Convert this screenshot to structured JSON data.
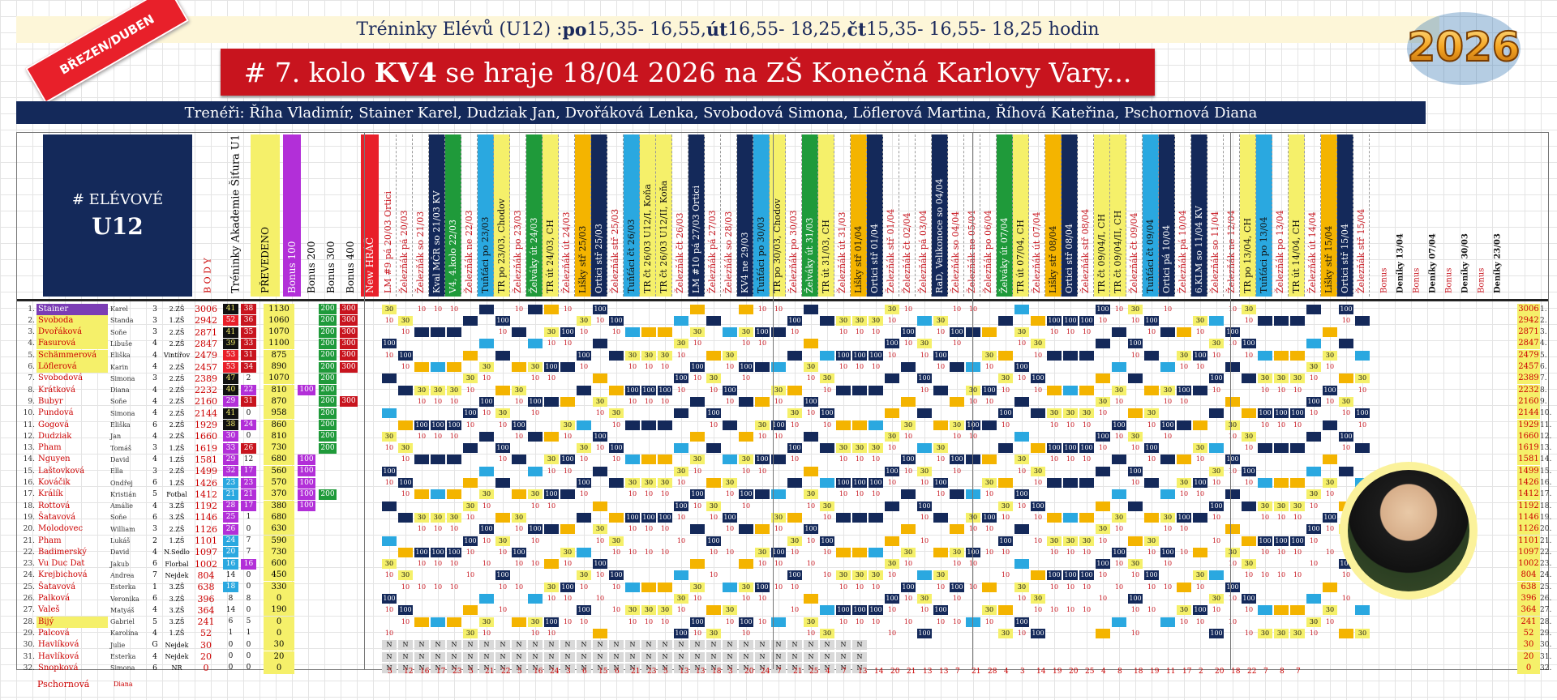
{
  "header": {
    "schedule_html_parts": [
      "Tréninky Elévů (U12) : ",
      "po",
      " 15,35- 16,55, ",
      "út",
      " 16,55- 18,25, ",
      "čt",
      " 15,35- 16,55- 18,25 hodin"
    ],
    "badge": "BŘEZEN/DUBEN",
    "round_prefix": "# 7. kolo ",
    "round_bold": "KV4",
    "round_suffix": " se hraje 18/04 2026 na ZŠ Konečná Karlovy Vary...",
    "coaches": "Trenéři: Říha Vladimír, Stainer Karel, Dudziak Jan, Dvořáková Lenka, Svobodová Simona, Löflerová Martina, Říhová Kateřina, Pschornová Diana",
    "logo_year": "2026"
  },
  "table": {
    "title_line1": "# ELÉVOVÉ",
    "title_line2": "U12",
    "col_body": "B O D Y",
    "col_academy": "Tréninky Akademie Šiťura U12",
    "col_transfer": "PŘEVEDENO",
    "col_bonus100": "Bonus 100",
    "col_bonus200": "Bonus 200",
    "col_bonus300": "Bonus 300",
    "col_bonus400": "Bonus 400",
    "col_new": "New HRÁČ",
    "events": [
      "LM #9 pá 20/03 Ortici",
      "Železňák pá 20/03",
      "Železňák so 21/03",
      "Kval MČR so 21/03 KV",
      "V4, 4.kolo 22/03",
      "Železňák ne 22/03",
      "Tuňťáci po 23/03",
      "TR po 23/03, Chodov",
      "Železňák po 23/03",
      "Želváky út 24/03",
      "TR út 24/03, CH",
      "Železňák út 24/03",
      "Lišky stř 25/03",
      "Ortici stř 25/03",
      "Železňák stř 25/03",
      "Tuňťáci čt 26/03",
      "TR čt 26/03 U12/I, Koňa",
      "TR čt 26/03 U12/II, Koňa",
      "Železňák čt 26/03",
      "LM #10 pá 27/03 Ortici",
      "Železňák pá 27/03",
      "Železňák so 28/03",
      "KV4 ne 29/03",
      "Tuňťáci po 30/03",
      "TR po 30/03, Chodov",
      "Železňák po 30/03",
      "Želváky út 31/03",
      "TR út 31/03, CH",
      "Železňák út 31/03",
      "Lišky stř 01/04",
      "Ortici stř 01/04",
      "Železňák stř 01/04",
      "Železňák čt 02/04",
      "Železňák pá 03/04",
      "RaD, Velikonoce so 04/04",
      "Železňák so 04/04",
      "Železňák ne 05/04",
      "Železňák po 06/04",
      "Želváky út 07/04",
      "TR út 07/04, CH",
      "Železňák út 07/04",
      "Lišky stř 08/04",
      "Ortici stř 08/04",
      "Železňák stř 08/04",
      "TR čt 09/04/I, CH",
      "TR čt 09/04/II, CH",
      "Železňák čt 09/04",
      "Tuňťáci čt 09/04",
      "Ortici pá 10/04",
      "Železňák pá 10/04",
      "6.KLM so 11/04 KV",
      "Železňák so 11/04",
      "Železňák ne 12/04",
      "TR po 13/04, CH",
      "Tuňťáci po 13/04",
      "Železňák po 13/04",
      "TR út 14/04, CH",
      "Železňák út 14/04",
      "Lišky stř 15/04",
      "Ortici stř 15/04",
      "Železňák stř 15/04"
    ],
    "right_headers": [
      "Bonus",
      "Deníky 13/04",
      "Bonus",
      "Deníky 07/04",
      "Bonus",
      "Deníky 30/03",
      "Bonus",
      "Deníky 23/03"
    ],
    "players": [
      {
        "n": "1.",
        "name": "Stainer",
        "first": "Karel",
        "age": "3",
        "school": "2.ZŠ",
        "pts": "3006",
        "a": "41",
        "b": "38",
        "tr": "1130",
        "b100": "",
        "b200": "200",
        "b300": "300",
        "hl": "purple"
      },
      {
        "n": "2.",
        "name": "Svoboda",
        "first": "Standa",
        "age": "3",
        "school": "1.ZŠ",
        "pts": "2942",
        "a": "52",
        "b": "36",
        "tr": "1060",
        "b100": "",
        "b200": "200",
        "b300": "300",
        "hl": "yellow"
      },
      {
        "n": "3.",
        "name": "Dvořáková",
        "first": "Soňe",
        "age": "3",
        "school": "2.ZŠ",
        "pts": "2871",
        "a": "41",
        "b": "35",
        "tr": "1070",
        "b100": "",
        "b200": "200",
        "b300": "300",
        "hl": "yellow"
      },
      {
        "n": "4.",
        "name": "Fasurová",
        "first": "Libuše",
        "age": "4",
        "school": "2.ZŠ",
        "pts": "2847",
        "a": "39",
        "b": "33",
        "tr": "1100",
        "b100": "",
        "b200": "200",
        "b300": "300",
        "hl": "yellow"
      },
      {
        "n": "5.",
        "name": "Schämmerová",
        "first": "Eliška",
        "age": "4",
        "school": "Vintířov",
        "pts": "2479",
        "a": "53",
        "b": "31",
        "tr": "875",
        "b100": "",
        "b200": "200",
        "b300": "300",
        "hl": "yellow"
      },
      {
        "n": "6.",
        "name": "Löflerová",
        "first": "Karin",
        "age": "4",
        "school": "2.ZŠ",
        "pts": "2457",
        "a": "53",
        "b": "34",
        "tr": "890",
        "b100": "",
        "b200": "200",
        "b300": "300",
        "hl": "yellow"
      },
      {
        "n": "7.",
        "name": "Svobodová",
        "first": "Simona",
        "age": "3",
        "school": "2.ZŠ",
        "pts": "2389",
        "a": "47",
        "b": "2",
        "tr": "1070",
        "b100": "",
        "b200": "200",
        "b300": "",
        "hl": ""
      },
      {
        "n": "8.",
        "name": "Krátková",
        "first": "Diana",
        "age": "4",
        "school": "2.ZŠ",
        "pts": "2232",
        "a": "40",
        "b": "22",
        "tr": "810",
        "b100": "100",
        "b200": "200",
        "b300": "",
        "hl": ""
      },
      {
        "n": "9.",
        "name": "Bubyr",
        "first": "Soňe",
        "age": "4",
        "school": "2.ZŠ",
        "pts": "2160",
        "a": "29",
        "b": "31",
        "tr": "870",
        "b100": "",
        "b200": "200",
        "b300": "300",
        "hl": ""
      },
      {
        "n": "10.",
        "name": "Pundová",
        "first": "Simona",
        "age": "4",
        "school": "2.ZŠ",
        "pts": "2144",
        "a": "41",
        "b": "0",
        "tr": "958",
        "b100": "",
        "b200": "200",
        "b300": "",
        "hl": ""
      },
      {
        "n": "11.",
        "name": "Gogová",
        "first": "Eliška",
        "age": "6",
        "school": "2.ZŠ",
        "pts": "1929",
        "a": "38",
        "b": "24",
        "tr": "860",
        "b100": "",
        "b200": "200",
        "b300": "",
        "hl": ""
      },
      {
        "n": "12.",
        "name": "Dudziak",
        "first": "Jan",
        "age": "4",
        "school": "2.ZŠ",
        "pts": "1660",
        "a": "30",
        "b": "0",
        "tr": "810",
        "b100": "",
        "b200": "200",
        "b300": "",
        "hl": ""
      },
      {
        "n": "13.",
        "name": "Pham",
        "first": "Tomáš",
        "age": "3",
        "school": "1.ZŠ",
        "pts": "1619",
        "a": "33",
        "b": "26",
        "tr": "730",
        "b100": "",
        "b200": "200",
        "b300": "",
        "hl": ""
      },
      {
        "n": "14.",
        "name": "Nguyen",
        "first": "David",
        "age": "4",
        "school": "1.ZŠ",
        "pts": "1581",
        "a": "29",
        "b": "12",
        "tr": "680",
        "b100": "100",
        "b200": "",
        "b300": "",
        "hl": ""
      },
      {
        "n": "15.",
        "name": "Laštovková",
        "first": "Ella",
        "age": "3",
        "school": "2.ZŠ",
        "pts": "1499",
        "a": "32",
        "b": "17",
        "tr": "560",
        "b100": "100",
        "b200": "",
        "b300": "",
        "hl": ""
      },
      {
        "n": "16.",
        "name": "Kováčik",
        "first": "Ondřej",
        "age": "6",
        "school": "1.ZŠ",
        "pts": "1426",
        "a": "23",
        "b": "23",
        "tr": "570",
        "b100": "100",
        "b200": "",
        "b300": "",
        "hl": ""
      },
      {
        "n": "17.",
        "name": "Králík",
        "first": "Kristián",
        "age": "5",
        "school": "Fotbal",
        "pts": "1412",
        "a": "21",
        "b": "21",
        "tr": "370",
        "b100": "100",
        "b200": "200",
        "b300": "",
        "hl": ""
      },
      {
        "n": "18.",
        "name": "Rottová",
        "first": "Amálie",
        "age": "4",
        "school": "3.ZŠ",
        "pts": "1192",
        "a": "28",
        "b": "17",
        "tr": "380",
        "b100": "100",
        "b200": "",
        "b300": "",
        "hl": ""
      },
      {
        "n": "19.",
        "name": "Šatavová",
        "first": "Soňe",
        "age": "6",
        "school": "3.ZŠ",
        "pts": "1146",
        "a": "25",
        "b": "1",
        "tr": "680",
        "b100": "",
        "b200": "",
        "b300": "",
        "hl": ""
      },
      {
        "n": "20.",
        "name": "Molodovec",
        "first": "William",
        "age": "3",
        "school": "2.ZŠ",
        "pts": "1126",
        "a": "26",
        "b": "0",
        "tr": "630",
        "b100": "",
        "b200": "",
        "b300": "",
        "hl": ""
      },
      {
        "n": "21.",
        "name": "Pham",
        "first": "Lukáš",
        "age": "2",
        "school": "1.ZŠ",
        "pts": "1101",
        "a": "24",
        "b": "7",
        "tr": "590",
        "b100": "",
        "b200": "",
        "b300": "",
        "hl": ""
      },
      {
        "n": "22.",
        "name": "Badimerský",
        "first": "David",
        "age": "4",
        "school": "N.Sedlo",
        "pts": "1097",
        "a": "20",
        "b": "7",
        "tr": "730",
        "b100": "",
        "b200": "",
        "b300": "",
        "hl": ""
      },
      {
        "n": "23.",
        "name": "Vu Duc Dat",
        "first": "Jakub",
        "age": "6",
        "school": "Florbal",
        "pts": "1002",
        "a": "16",
        "b": "16",
        "tr": "600",
        "b100": "",
        "b200": "",
        "b300": "",
        "hl": ""
      },
      {
        "n": "24.",
        "name": "Krejbichová",
        "first": "Andrea",
        "age": "7",
        "school": "Nejdek",
        "pts": "804",
        "a": "14",
        "b": "0",
        "tr": "450",
        "b100": "",
        "b200": "",
        "b300": "",
        "hl": ""
      },
      {
        "n": "25.",
        "name": "Šatavová",
        "first": "Esterka",
        "age": "1",
        "school": "3.ZŠ",
        "pts": "638",
        "a": "18",
        "b": "0",
        "tr": "330",
        "b100": "",
        "b200": "",
        "b300": "",
        "hl": ""
      },
      {
        "n": "26.",
        "name": "Palková",
        "first": "Veronika",
        "age": "6",
        "school": "3.ZŠ",
        "pts": "396",
        "a": "8",
        "b": "8",
        "tr": "0",
        "b100": "",
        "b200": "",
        "b300": "",
        "hl": ""
      },
      {
        "n": "27.",
        "name": "Valeš",
        "first": "Matyáš",
        "age": "4",
        "school": "3.ZŠ",
        "pts": "364",
        "a": "14",
        "b": "0",
        "tr": "190",
        "b100": "",
        "b200": "",
        "b300": "",
        "hl": ""
      },
      {
        "n": "28.",
        "name": "Bijý",
        "first": "Gabriel",
        "age": "5",
        "school": "3.ZŠ",
        "pts": "241",
        "a": "6",
        "b": "5",
        "tr": "0",
        "b100": "",
        "b200": "",
        "b300": "",
        "hl": "yellow"
      },
      {
        "n": "29.",
        "name": "Palcová",
        "first": "Karolína",
        "age": "4",
        "school": "1.ZŠ",
        "pts": "52",
        "a": "1",
        "b": "1",
        "tr": "0",
        "b100": "",
        "b200": "",
        "b300": "",
        "hl": ""
      },
      {
        "n": "30.",
        "name": "Havlíková",
        "first": "Julie",
        "age": "G",
        "school": "Nejdek",
        "pts": "30",
        "a": "0",
        "b": "0",
        "tr": "30",
        "b100": "",
        "b200": "",
        "b300": "",
        "hl": ""
      },
      {
        "n": "31.",
        "name": "Havlíková",
        "first": "Esterka",
        "age": "4",
        "school": "Nejdek",
        "pts": "20",
        "a": "0",
        "b": "0",
        "tr": "20",
        "b100": "",
        "b200": "",
        "b300": "",
        "hl": ""
      },
      {
        "n": "32.",
        "name": "Snopková",
        "first": "Simona",
        "age": "6",
        "school": "NR",
        "pts": "0",
        "a": "0",
        "b": "0",
        "tr": "0",
        "b100": "",
        "b200": "",
        "b300": "",
        "hl": ""
      }
    ],
    "footer_name": "Pschornová",
    "footer_first": "Diana",
    "footer_counts": [
      "5",
      "12",
      "16",
      "17",
      "23",
      "5",
      "21",
      "22",
      "5",
      "16",
      "24",
      "3",
      "6",
      "15",
      "6",
      "21",
      "23",
      "5",
      "13",
      "13",
      "18",
      "3",
      "20",
      "24",
      "7",
      "21",
      "25",
      "4",
      "7",
      "13",
      "14",
      "20",
      "21",
      "13",
      "13",
      "7",
      "21",
      "28",
      "4",
      "3",
      "14",
      "19",
      "20",
      "25",
      "4",
      "8",
      "18",
      "19",
      "11",
      "17",
      "2",
      "20",
      "18",
      "22",
      "7",
      "8",
      "7"
    ],
    "pts_right": [
      "3006",
      "2942",
      "2871",
      "2847",
      "2479",
      "2457",
      "2389",
      "2232",
      "2160",
      "2144",
      "1929",
      "1660",
      "1619",
      "1581",
      "1499",
      "1426",
      "1412",
      "1192",
      "1146",
      "1126",
      "1101",
      "1097",
      "1002",
      "804",
      "638",
      "396",
      "364",
      "241",
      "52",
      "30",
      "20",
      "0"
    ]
  },
  "colors": {
    "navy": "#14295a",
    "red": "#c8141e",
    "yellow": "#f5f06a",
    "green": "#1f9a3a",
    "purple": "#b22fd8",
    "lightblue": "#2aa8e0",
    "orange": "#f4b400"
  }
}
